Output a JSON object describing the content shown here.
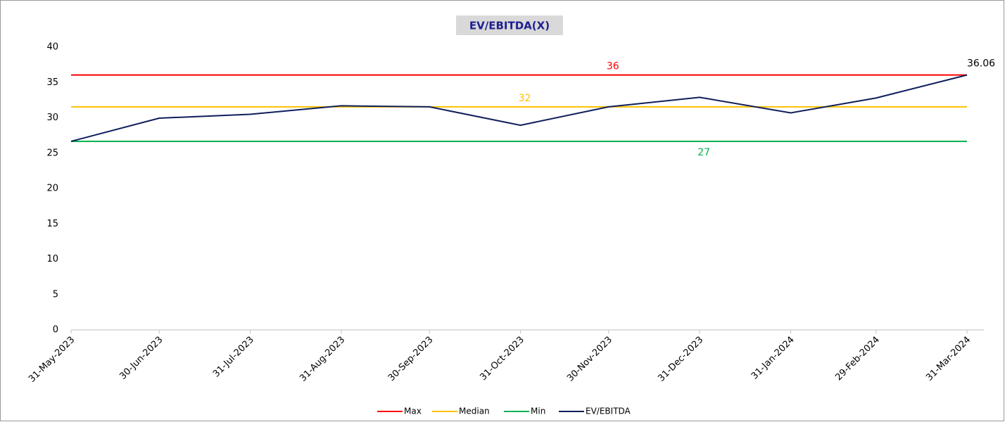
{
  "chart_data": {
    "type": "line",
    "title": "EV/EBITDA(X)",
    "x": [
      "31-May-2023",
      "30-Jun-2023",
      "31-Jul-2023",
      "31-Aug-2023",
      "30-Sep-2023",
      "31-Oct-2023",
      "30-Nov-2023",
      "31-Dec-2023",
      "31-Jan-2024",
      "29-Feb-2024",
      "31-Mar-2024"
    ],
    "series": [
      {
        "name": "Max",
        "color": "#ff0000",
        "values": [
          36.06,
          36.06,
          36.06,
          36.06,
          36.06,
          36.06,
          36.06,
          36.06,
          36.06,
          36.06,
          36.06
        ],
        "value_labels": [
          null,
          null,
          null,
          null,
          null,
          null,
          "36",
          null,
          null,
          null,
          null
        ]
      },
      {
        "name": "Median",
        "color": "#ffc000",
        "values": [
          31.55,
          31.55,
          31.55,
          31.55,
          31.55,
          31.55,
          31.55,
          31.55,
          31.55,
          31.55,
          31.55
        ],
        "value_labels": [
          null,
          null,
          null,
          null,
          null,
          "32",
          null,
          null,
          null,
          null,
          null
        ]
      },
      {
        "name": "Min",
        "color": "#00b050",
        "values": [
          26.67,
          26.67,
          26.67,
          26.67,
          26.67,
          26.67,
          26.67,
          26.67,
          26.67,
          26.67,
          26.67
        ],
        "value_labels": [
          null,
          null,
          null,
          null,
          null,
          null,
          null,
          "27",
          null,
          null,
          null
        ]
      },
      {
        "name": "EV/EBITDA",
        "color": "#0e1e5b",
        "values": [
          26.67,
          29.95,
          30.5,
          31.7,
          31.55,
          28.95,
          31.55,
          32.9,
          30.7,
          32.8,
          36.06
        ],
        "value_labels": [
          null,
          null,
          null,
          null,
          null,
          null,
          null,
          null,
          null,
          null,
          "36.06"
        ]
      }
    ],
    "ylim": [
      0,
      40
    ],
    "yticks": [
      0,
      5,
      10,
      15,
      20,
      25,
      30,
      35,
      40
    ],
    "grid": false,
    "legend": "bottom"
  }
}
